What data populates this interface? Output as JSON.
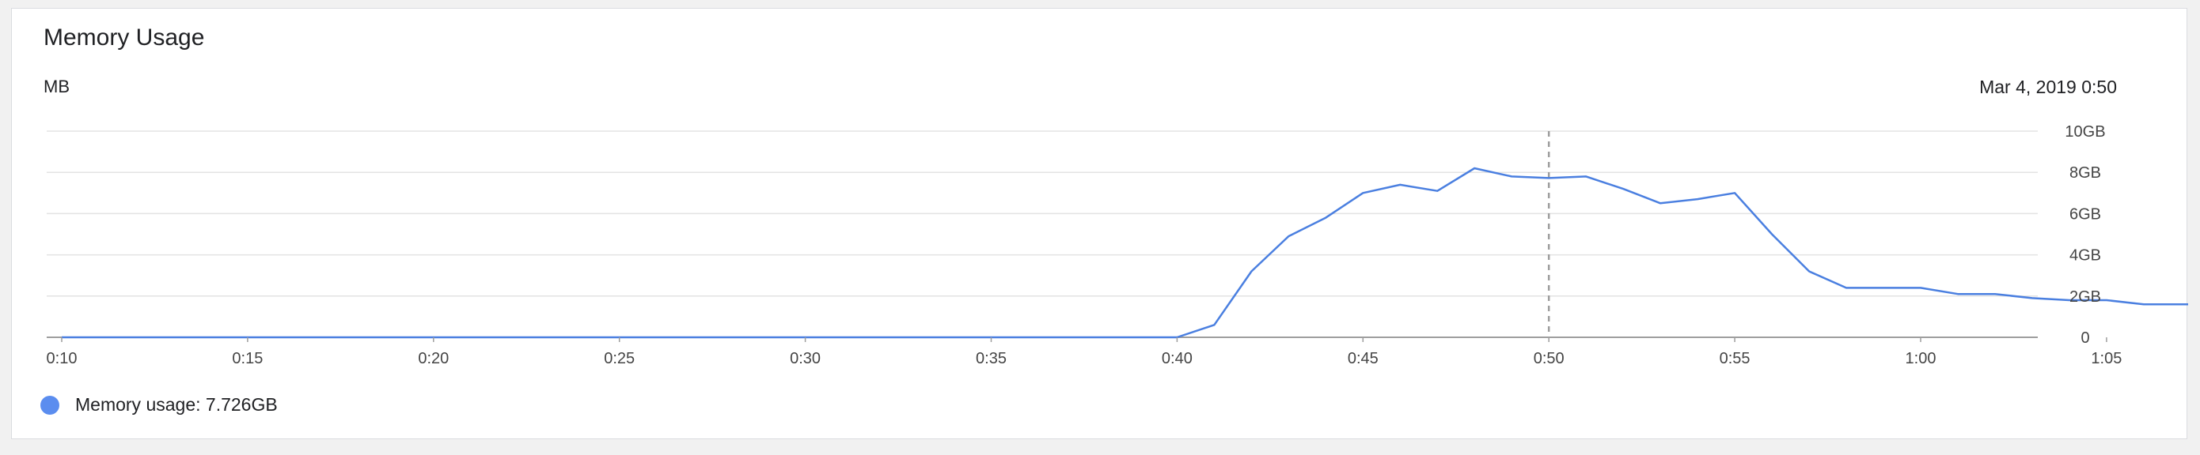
{
  "card": {
    "title": "Memory Usage",
    "unit": "MB",
    "timestamp": "Mar 4, 2019 0:50"
  },
  "legend": {
    "label": "Memory usage: 7.726GB",
    "color": "#5b8def"
  },
  "chart_data": {
    "type": "line",
    "title": "Memory Usage",
    "ylabel": "MB",
    "xlabel": "",
    "xlim": [
      10,
      70
    ],
    "ylim": [
      0,
      10
    ],
    "grid": true,
    "y_axis_side": "right",
    "x_ticks": [
      {
        "v": 10,
        "label": "0:10"
      },
      {
        "v": 15,
        "label": "0:15"
      },
      {
        "v": 20,
        "label": "0:20"
      },
      {
        "v": 25,
        "label": "0:25"
      },
      {
        "v": 30,
        "label": "0:30"
      },
      {
        "v": 35,
        "label": "0:35"
      },
      {
        "v": 40,
        "label": "0:40"
      },
      {
        "v": 45,
        "label": "0:45"
      },
      {
        "v": 50,
        "label": "0:50"
      },
      {
        "v": 55,
        "label": "0:55"
      },
      {
        "v": 60,
        "label": "1:00"
      },
      {
        "v": 65,
        "label": "1:05"
      }
    ],
    "y_ticks": [
      {
        "v": 0,
        "label": "0"
      },
      {
        "v": 2,
        "label": "2GB"
      },
      {
        "v": 4,
        "label": "4GB"
      },
      {
        "v": 6,
        "label": "6GB"
      },
      {
        "v": 8,
        "label": "8GB"
      },
      {
        "v": 10,
        "label": "10GB"
      }
    ],
    "marker_x": 50,
    "series": [
      {
        "color": "#4a7fe0",
        "x": [
          10,
          40,
          41,
          42,
          43,
          44,
          45,
          46,
          47,
          48,
          49,
          50,
          51,
          52,
          53,
          54,
          55,
          56,
          57,
          58,
          59,
          60,
          61,
          62,
          63,
          64,
          65,
          66,
          67,
          68
        ],
        "y": [
          0,
          0,
          0.6,
          3.2,
          4.9,
          5.8,
          7.0,
          7.4,
          7.1,
          8.2,
          7.8,
          7.726,
          7.8,
          7.2,
          6.5,
          6.7,
          7.0,
          5.0,
          3.2,
          2.4,
          2.4,
          2.4,
          2.1,
          2.1,
          1.9,
          1.8,
          1.8,
          1.6,
          1.6,
          1.6
        ]
      }
    ]
  }
}
